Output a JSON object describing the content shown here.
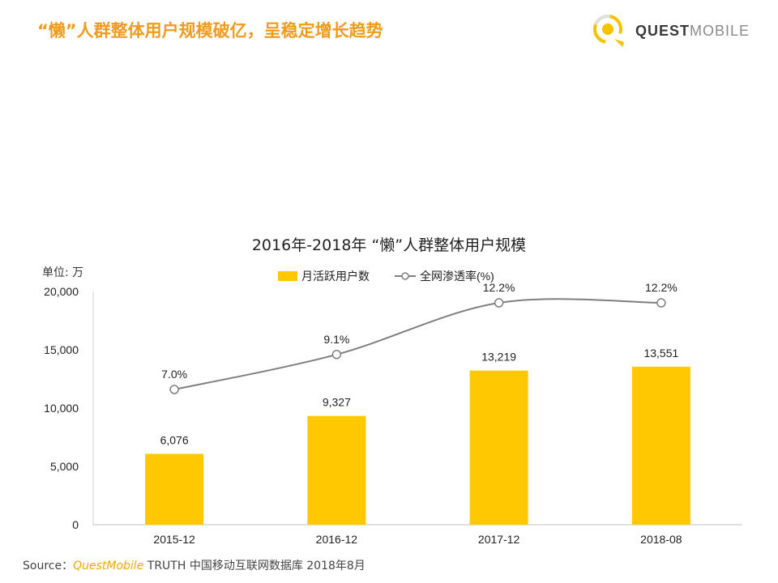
{
  "header": {
    "headline": "“懒”人群整体用户规模破亿，呈稳定增长趋势",
    "brand_primary": "QUEST",
    "brand_secondary": "MOBILE"
  },
  "unit_label": "单位: 万",
  "chart_data": {
    "type": "bar",
    "title": "2016年-2018年 “懒”人群整体用户规模",
    "categories": [
      "2015-12",
      "2016-12",
      "2017-12",
      "2018-08"
    ],
    "series": [
      {
        "name": "月活跃用户数",
        "type": "bar",
        "axis": "left",
        "values": [
          6076,
          9327,
          13219,
          13551
        ],
        "labels": [
          "6,076",
          "9,327",
          "13,219",
          "13,551"
        ]
      },
      {
        "name": "全网渗透率(%)",
        "type": "line",
        "axis": "secondary",
        "values": [
          7.0,
          9.1,
          12.2,
          12.2
        ],
        "labels": [
          "7.0%",
          "9.1%",
          "12.2%",
          "12.2%"
        ]
      }
    ],
    "ylim": [
      0,
      20000
    ],
    "yticks": [
      0,
      5000,
      10000,
      15000,
      20000
    ],
    "ytick_labels": [
      "0",
      "5,000",
      "10,000",
      "15,000",
      "20,000"
    ],
    "legend_position": "top-center",
    "grid": false
  },
  "source": {
    "prefix": "Source：",
    "brand": "QuestMobile",
    "rest": "TRUTH 中国移动互联网数据库 2018年8月"
  },
  "colors": {
    "accent": "#F19B1C",
    "bar": "#FFC800",
    "line": "#7F7F7F",
    "brand_yellow": "#F6C200"
  }
}
